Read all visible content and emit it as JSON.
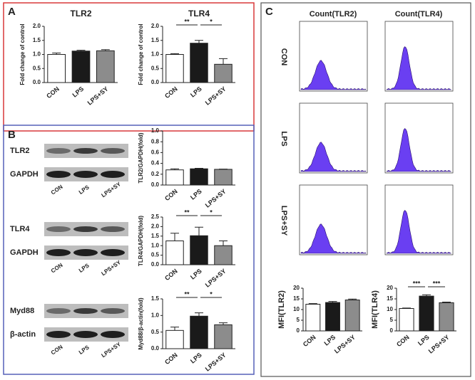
{
  "panels": [
    "A",
    "B",
    "C"
  ],
  "blots": {
    "labels": [
      "TLR2",
      "GAPDH",
      "TLR4",
      "GAPDH",
      "Myd88",
      "β-actin"
    ],
    "lanes": [
      "CON",
      "LPS",
      "LPS+SY"
    ]
  },
  "flow": {
    "columns": [
      "Count(TLR2)",
      "Count(TLR4)"
    ],
    "rows": [
      "CON",
      "LPS",
      "LPS+SY"
    ]
  },
  "chart_data": [
    {
      "type": "bar",
      "title": "TLR2",
      "ylabel": "Fold change of control",
      "categories": [
        "CON",
        "LPS",
        "LPS+SY"
      ],
      "values": [
        1.0,
        1.12,
        1.13
      ],
      "errors": [
        0.05,
        0.03,
        0.04
      ],
      "colors": [
        "#ffffff",
        "#1a1a1a",
        "#8c8c8c"
      ],
      "ylim": [
        0,
        2
      ],
      "yticks": [
        {
          "value": 0,
          "label": "0.0"
        },
        {
          "value": 0.5,
          "label": "0.5"
        },
        {
          "value": 1,
          "label": "1.0"
        },
        {
          "value": 1.5,
          "label": "1.5"
        },
        {
          "value": 2,
          "label": "2.0"
        }
      ],
      "brackets": []
    },
    {
      "type": "bar",
      "title": "TLR4",
      "ylabel": "Fold change of control",
      "categories": [
        "CON",
        "LPS",
        "LPS+SY"
      ],
      "values": [
        1.0,
        1.4,
        0.65
      ],
      "errors": [
        0.03,
        0.1,
        0.2
      ],
      "colors": [
        "#ffffff",
        "#1a1a1a",
        "#8c8c8c"
      ],
      "ylim": [
        0,
        2
      ],
      "yticks": [
        {
          "value": 0,
          "label": "0.0"
        },
        {
          "value": 0.5,
          "label": "0.5"
        },
        {
          "value": 1,
          "label": "1.0"
        },
        {
          "value": 1.5,
          "label": "1.5"
        },
        {
          "value": 2,
          "label": "2.0"
        }
      ],
      "brackets": [
        {
          "label": "**",
          "span": [
            0,
            1
          ]
        },
        {
          "label": "*",
          "span": [
            1,
            2
          ]
        }
      ]
    },
    {
      "type": "bar",
      "ylabel": "TLR2/GAPDH(fold)",
      "categories": [
        "CON",
        "LPS",
        "LPS+SY"
      ],
      "values": [
        0.28,
        0.3,
        0.29
      ],
      "errors": [
        0.02,
        0.01,
        0.005
      ],
      "colors": [
        "#ffffff",
        "#1a1a1a",
        "#8c8c8c"
      ],
      "ylim": [
        0,
        1
      ],
      "yticks": [
        {
          "value": 0,
          "label": "0.0"
        },
        {
          "value": 0.2,
          "label": "0.2"
        },
        {
          "value": 0.4,
          "label": "0.4"
        },
        {
          "value": 0.6,
          "label": "0.6"
        },
        {
          "value": 0.8,
          "label": "0.8"
        },
        {
          "value": 1,
          "label": "1.0"
        }
      ],
      "brackets": []
    },
    {
      "type": "bar",
      "ylabel": "TLR4/GAPDH(fold)",
      "categories": [
        "CON",
        "LPS",
        "LPS+SY"
      ],
      "values": [
        1.25,
        1.52,
        1.0
      ],
      "errors": [
        0.4,
        0.45,
        0.25
      ],
      "colors": [
        "#ffffff",
        "#1a1a1a",
        "#8c8c8c"
      ],
      "ylim": [
        0,
        2.5
      ],
      "yticks": [
        {
          "value": 0,
          "label": "0.0"
        },
        {
          "value": 0.5,
          "label": "0.5"
        },
        {
          "value": 1,
          "label": "1.0"
        },
        {
          "value": 1.5,
          "label": "1.5"
        },
        {
          "value": 2,
          "label": "2.0"
        },
        {
          "value": 2.5,
          "label": "2.5"
        }
      ],
      "brackets": [
        {
          "label": "**",
          "span": [
            0,
            1
          ]
        },
        {
          "label": "*",
          "span": [
            1,
            2
          ]
        }
      ]
    },
    {
      "type": "bar",
      "ylabel": "Myd88/β-actin(fold)",
      "categories": [
        "CON",
        "LPS",
        "LPS+SY"
      ],
      "values": [
        0.55,
        0.98,
        0.72
      ],
      "errors": [
        0.1,
        0.1,
        0.06
      ],
      "colors": [
        "#ffffff",
        "#1a1a1a",
        "#8c8c8c"
      ],
      "ylim": [
        0,
        1.5
      ],
      "yticks": [
        {
          "value": 0,
          "label": "0.0"
        },
        {
          "value": 0.5,
          "label": "0.5"
        },
        {
          "value": 1,
          "label": "1.0"
        },
        {
          "value": 1.5,
          "label": "1.5"
        }
      ],
      "brackets": [
        {
          "label": "**",
          "span": [
            0,
            1
          ]
        },
        {
          "label": "*",
          "span": [
            1,
            2
          ]
        }
      ]
    },
    {
      "type": "bar",
      "ylabel": "MFI(TLR2)",
      "categories": [
        "CON",
        "LPS",
        "LPS+SY"
      ],
      "values": [
        12.5,
        13.3,
        14.5
      ],
      "errors": [
        0.3,
        0.5,
        0.4
      ],
      "colors": [
        "#ffffff",
        "#1a1a1a",
        "#8c8c8c"
      ],
      "ylim": [
        0,
        20
      ],
      "yticks": [
        0,
        5,
        10,
        15,
        20
      ],
      "brackets": []
    },
    {
      "type": "bar",
      "ylabel": "MFI(TLR4)",
      "categories": [
        "CON",
        "LPS",
        "LPS+SY"
      ],
      "values": [
        10.5,
        16.3,
        13.2
      ],
      "errors": [
        0.2,
        0.6,
        0.3
      ],
      "colors": [
        "#ffffff",
        "#1a1a1a",
        "#8c8c8c"
      ],
      "ylim": [
        0,
        20
      ],
      "yticks": [
        0,
        5,
        10,
        15,
        20
      ],
      "brackets": [
        {
          "label": "***",
          "span": [
            0,
            1
          ]
        },
        {
          "label": "***",
          "span": [
            1,
            2
          ]
        }
      ]
    }
  ]
}
